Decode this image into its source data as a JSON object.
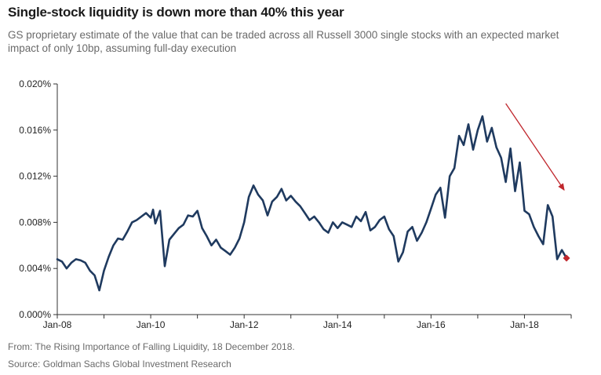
{
  "header": {
    "title": "Single-stock liquidity is down more than 40% this year",
    "subtitle": "GS proprietary estimate of the value that can be traded across all Russell 3000 single stocks with an expected market impact of only 10bp, assuming full-day execution"
  },
  "footer": {
    "source_line1": "From: The Rising Importance of Falling Liquidity, 18 December 2018.",
    "source_line2": "Source: Goldman Sachs Global Investment Research"
  },
  "chart_data": {
    "type": "line",
    "title": "Single-stock liquidity is down more than 40% this year",
    "xlabel": "",
    "ylabel": "",
    "xlim": [
      2008.0,
      2019.0
    ],
    "ylim": [
      0.0,
      0.02
    ],
    "x_ticks": [
      2008,
      2010,
      2012,
      2014,
      2016,
      2018
    ],
    "x_tick_labels": [
      "Jan-08",
      "Jan-10",
      "Jan-12",
      "Jan-14",
      "Jan-16",
      "Jan-18"
    ],
    "y_ticks": [
      0.0,
      0.004,
      0.008,
      0.012,
      0.016,
      0.02
    ],
    "y_tick_labels": [
      "0.000%",
      "0.004%",
      "0.008%",
      "0.012%",
      "0.016%",
      "0.020%"
    ],
    "grid": false,
    "legend": "none",
    "line_color": "#1f3a5f",
    "annotation_color": "#c0272d",
    "series": [
      {
        "x": [
          2008.0,
          2008.1,
          2008.2,
          2008.3,
          2008.4,
          2008.5,
          2008.6,
          2008.7,
          2008.8,
          2008.9,
          2009.0,
          2009.1,
          2009.2,
          2009.3,
          2009.4,
          2009.5,
          2009.6,
          2009.7,
          2009.8,
          2009.9,
          2010.0,
          2010.05,
          2010.1,
          2010.2,
          2010.3,
          2010.4,
          2010.5,
          2010.6,
          2010.7,
          2010.8,
          2010.9,
          2011.0,
          2011.1,
          2011.2,
          2011.3,
          2011.4,
          2011.5,
          2011.6,
          2011.7,
          2011.8,
          2011.9,
          2012.0,
          2012.1,
          2012.2,
          2012.3,
          2012.4,
          2012.5,
          2012.6,
          2012.7,
          2012.8,
          2012.9,
          2013.0,
          2013.1,
          2013.2,
          2013.3,
          2013.4,
          2013.5,
          2013.6,
          2013.7,
          2013.8,
          2013.9,
          2014.0,
          2014.1,
          2014.2,
          2014.3,
          2014.4,
          2014.5,
          2014.6,
          2014.7,
          2014.8,
          2014.9,
          2015.0,
          2015.1,
          2015.2,
          2015.3,
          2015.4,
          2015.5,
          2015.6,
          2015.7,
          2015.8,
          2015.9,
          2016.0,
          2016.1,
          2016.2,
          2016.3,
          2016.4,
          2016.5,
          2016.6,
          2016.7,
          2016.8,
          2016.9,
          2017.0,
          2017.1,
          2017.2,
          2017.3,
          2017.4,
          2017.5,
          2017.6,
          2017.7,
          2017.8,
          2017.9,
          2018.0,
          2018.1,
          2018.2,
          2018.3,
          2018.4,
          2018.5,
          2018.6,
          2018.7,
          2018.8,
          2018.9
        ],
        "values": [
          0.0048,
          0.0046,
          0.004,
          0.0045,
          0.0048,
          0.0047,
          0.0045,
          0.0038,
          0.0034,
          0.0021,
          0.0038,
          0.005,
          0.006,
          0.0066,
          0.0065,
          0.0072,
          0.008,
          0.0082,
          0.0085,
          0.0088,
          0.0084,
          0.0091,
          0.0079,
          0.009,
          0.0042,
          0.0065,
          0.007,
          0.0075,
          0.0078,
          0.0086,
          0.0085,
          0.009,
          0.0075,
          0.0068,
          0.006,
          0.0065,
          0.0058,
          0.0055,
          0.0052,
          0.0058,
          0.0066,
          0.008,
          0.0102,
          0.0112,
          0.0104,
          0.0099,
          0.0086,
          0.0098,
          0.0102,
          0.0109,
          0.0099,
          0.0103,
          0.0098,
          0.0094,
          0.0088,
          0.0082,
          0.0085,
          0.008,
          0.0074,
          0.0071,
          0.008,
          0.0075,
          0.008,
          0.0078,
          0.0076,
          0.0085,
          0.0081,
          0.0089,
          0.0073,
          0.0076,
          0.0082,
          0.0085,
          0.0074,
          0.0068,
          0.0046,
          0.0054,
          0.0072,
          0.0076,
          0.0064,
          0.0071,
          0.008,
          0.0092,
          0.0104,
          0.011,
          0.0084,
          0.012,
          0.0127,
          0.0155,
          0.0147,
          0.0165,
          0.0143,
          0.016,
          0.0172,
          0.015,
          0.0162,
          0.0145,
          0.0136,
          0.0115,
          0.0144,
          0.0107,
          0.0132,
          0.009,
          0.0087,
          0.0076,
          0.0068,
          0.0061,
          0.0095,
          0.0085,
          0.0048,
          0.0056,
          0.0049
        ]
      }
    ],
    "annotations": [
      {
        "type": "trend-arrow",
        "from": [
          2017.6,
          0.0183
        ],
        "to": [
          2018.85,
          0.0108
        ]
      },
      {
        "type": "end-marker",
        "x": 2018.9,
        "y": 0.0049
      }
    ]
  }
}
